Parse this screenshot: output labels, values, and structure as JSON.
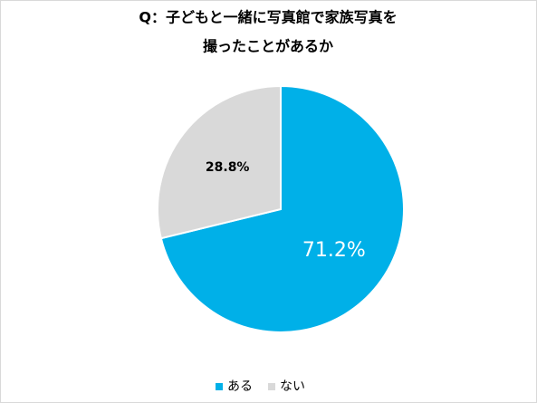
{
  "chart_data": {
    "type": "pie",
    "title": [
      "Q：子どもと一緒に写真館で家族写真を",
      "撮ったことがあるか"
    ],
    "categories": [
      "ある",
      "ない"
    ],
    "values": [
      71.2,
      28.8
    ],
    "value_labels": [
      "71.2%",
      "28.8%"
    ],
    "colors": [
      "#00b0e8",
      "#d9d9d9"
    ],
    "label_colors": [
      "#ffffff",
      "#000000"
    ],
    "legend": "bottom"
  }
}
